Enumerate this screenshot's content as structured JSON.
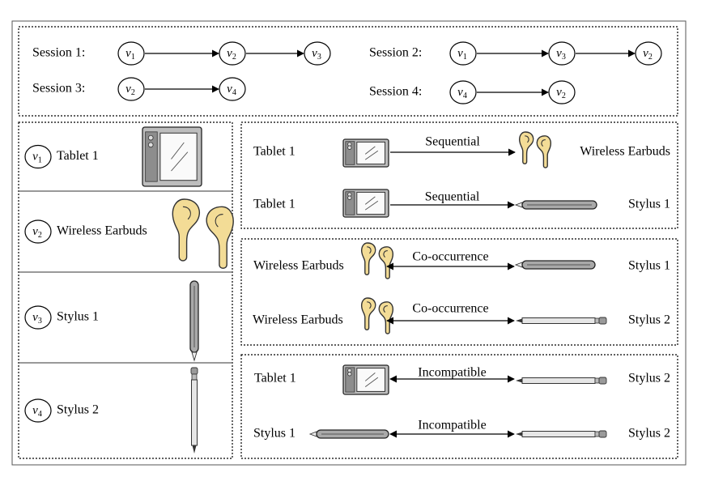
{
  "nodes": {
    "v1": {
      "base": "v",
      "sub": "1"
    },
    "v2": {
      "base": "v",
      "sub": "2"
    },
    "v3": {
      "base": "v",
      "sub": "3"
    },
    "v4": {
      "base": "v",
      "sub": "4"
    }
  },
  "sessions": [
    {
      "label": "Session 1:",
      "sequence": [
        "v1",
        "v2",
        "v3"
      ]
    },
    {
      "label": "Session 2:",
      "sequence": [
        "v1",
        "v3",
        "v2"
      ]
    },
    {
      "label": "Session 3:",
      "sequence": [
        "v2",
        "v4"
      ]
    },
    {
      "label": "Session 4:",
      "sequence": [
        "v4",
        "v2"
      ]
    }
  ],
  "items": [
    {
      "node": "v1",
      "name": "Tablet 1",
      "icon": "tablet-icon"
    },
    {
      "node": "v2",
      "name": "Wireless Earbuds",
      "icon": "earbuds-icon"
    },
    {
      "node": "v3",
      "name": "Stylus 1",
      "icon": "stylus-1-icon"
    },
    {
      "node": "v4",
      "name": "Stylus 2",
      "icon": "stylus-2-icon"
    }
  ],
  "relation_groups": [
    {
      "relations": [
        {
          "left": "Tablet 1",
          "right": "Wireless Earbuds",
          "label": "Sequential",
          "direction": "forward"
        },
        {
          "left": "Tablet 1",
          "right": "Stylus 1",
          "label": "Sequential",
          "direction": "forward"
        }
      ]
    },
    {
      "relations": [
        {
          "left": "Wireless Earbuds",
          "right": "Stylus 1",
          "label": "Co-occurrence",
          "direction": "both"
        },
        {
          "left": "Wireless Earbuds",
          "right": "Stylus 2",
          "label": "Co-occurrence",
          "direction": "both"
        }
      ]
    },
    {
      "relations": [
        {
          "left": "Tablet 1",
          "right": "Stylus 2",
          "label": "Incompatible",
          "direction": "both"
        },
        {
          "left": "Stylus 1",
          "right": "Stylus 2",
          "label": "Incompatible",
          "direction": "both"
        }
      ]
    }
  ],
  "colors": {
    "earbud_fill": "#F3DC96",
    "tablet_fill": "#BDBDBD",
    "stylus_fill": "#A9A9A9",
    "ink": "#000000"
  }
}
